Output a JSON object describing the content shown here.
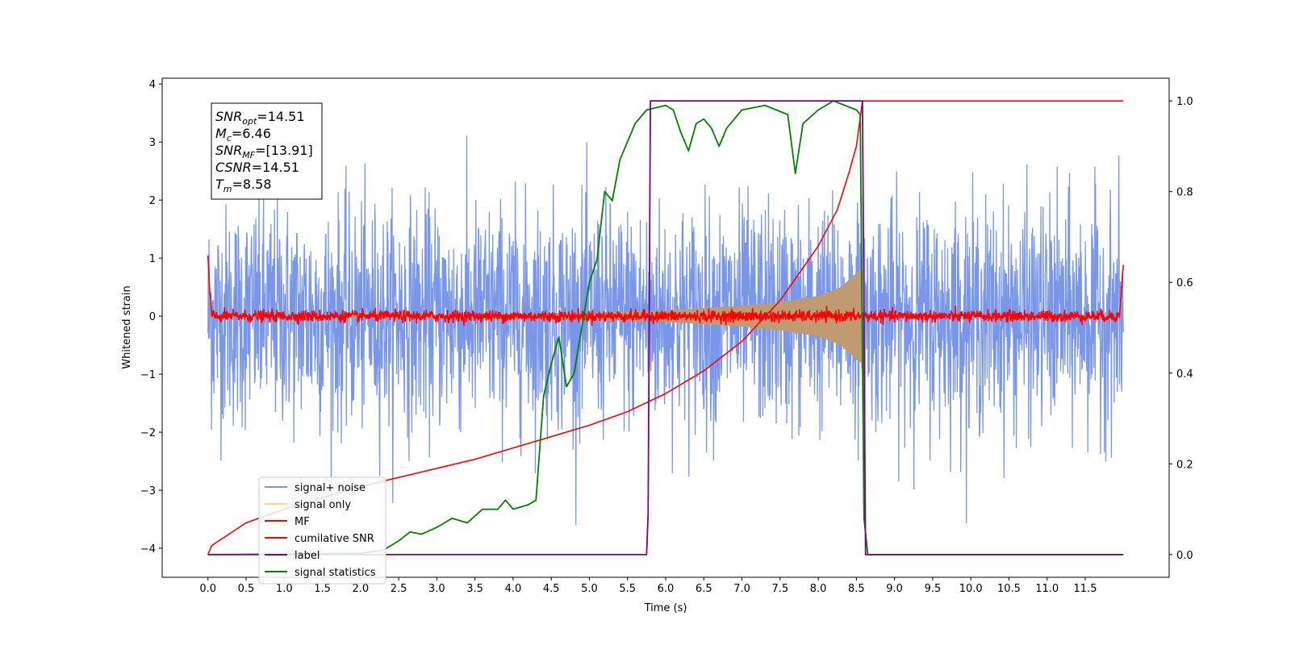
{
  "chart_data": {
    "type": "line",
    "xlabel": "Time (s)",
    "ylabel": "Whitened strain",
    "xlim": [
      -0.6,
      12.6
    ],
    "ylim": [
      -4.5,
      4.1
    ],
    "y2lim": [
      -0.05,
      1.05
    ],
    "x_ticks": [
      0.0,
      0.5,
      1.0,
      1.5,
      2.0,
      2.5,
      3.0,
      3.5,
      4.0,
      4.5,
      5.0,
      5.5,
      6.0,
      6.5,
      7.0,
      7.5,
      8.0,
      8.5,
      9.0,
      9.5,
      10.0,
      10.5,
      11.0,
      11.5
    ],
    "x_tick_labels": [
      "0.0",
      "0.5",
      "1.0",
      "1.5",
      "2.0",
      "2.5",
      "3.0",
      "3.5",
      "4.0",
      "4.5",
      "5.0",
      "5.5",
      "6.0",
      "6.5",
      "7.0",
      "7.5",
      "8.0",
      "8.5",
      "9.0",
      "9.5",
      "10.0",
      "10.5",
      "11.0",
      "11.5"
    ],
    "y_ticks": [
      4,
      3,
      2,
      1,
      0,
      -1,
      -2,
      -3,
      -4
    ],
    "y_tick_labels": [
      "4",
      "3",
      "2",
      "1",
      "0",
      "−1",
      "−2",
      "−3",
      "−4"
    ],
    "y2_ticks": [
      0.0,
      0.2,
      0.4,
      0.6,
      0.8,
      1.0
    ],
    "y2_tick_labels": [
      "0.0",
      "0.2",
      "0.4",
      "0.6",
      "0.8",
      "1.0"
    ],
    "legend": {
      "placement": "lower-left",
      "entries": [
        {
          "label": "signal+ noise",
          "color": "#7a96e8"
        },
        {
          "label": "signal only",
          "color": "#ffd27f"
        },
        {
          "label": "MF",
          "color": "#ff0000"
        },
        {
          "label": "cumilative SNR",
          "color": "#ff0000"
        },
        {
          "label": "label",
          "color": "#800080"
        },
        {
          "label": "signal statistics",
          "color": "#008000"
        }
      ]
    },
    "info_box": [
      {
        "sym": "SNR",
        "sub": "opt",
        "val": "=14.51"
      },
      {
        "sym": "M",
        "sub": "c",
        "val": "=6.46"
      },
      {
        "sym": "SNR",
        "sub": "MF",
        "val": "=[13.91]"
      },
      {
        "sym": "CSNR",
        "sub": "",
        "val": "=14.51"
      },
      {
        "sym": "T",
        "sub": "m",
        "val": "=8.58"
      }
    ],
    "series": [
      {
        "name": "signal+ noise",
        "axis": "left",
        "color": "#7a96e8",
        "style": "noise",
        "x_range": [
          0.0,
          12.0
        ],
        "amplitude": 0.95,
        "y_extremes": [
          3.7,
          -4.15
        ]
      },
      {
        "name": "signal only",
        "axis": "left",
        "color": "#c09a70",
        "style": "chirp_envelope",
        "x_range": [
          0.0,
          8.58
        ],
        "points": [
          [
            0.0,
            0.01
          ],
          [
            2.0,
            0.02
          ],
          [
            4.0,
            0.04
          ],
          [
            5.0,
            0.06
          ],
          [
            6.0,
            0.1
          ],
          [
            7.0,
            0.18
          ],
          [
            7.5,
            0.24
          ],
          [
            8.0,
            0.35
          ],
          [
            8.3,
            0.5
          ],
          [
            8.5,
            0.75
          ],
          [
            8.58,
            0.82
          ]
        ]
      },
      {
        "name": "MF",
        "axis": "left",
        "color": "#ff0000",
        "style": "noise",
        "x_range": [
          0.0,
          12.0
        ],
        "amplitude": 0.05,
        "edge_values": [
          [
            0.0,
            1.0
          ],
          [
            0.02,
            0.5
          ],
          [
            0.05,
            0.05
          ],
          [
            11.95,
            0.05
          ],
          [
            12.0,
            0.98
          ]
        ]
      },
      {
        "name": "cumilative SNR",
        "axis": "right",
        "color": "#ff0000",
        "points": [
          [
            0.0,
            0.0
          ],
          [
            0.05,
            0.02
          ],
          [
            0.5,
            0.07
          ],
          [
            1.0,
            0.1
          ],
          [
            1.5,
            0.125
          ],
          [
            2.0,
            0.15
          ],
          [
            2.5,
            0.17
          ],
          [
            3.0,
            0.19
          ],
          [
            3.5,
            0.21
          ],
          [
            4.0,
            0.235
          ],
          [
            4.5,
            0.26
          ],
          [
            5.0,
            0.285
          ],
          [
            5.5,
            0.315
          ],
          [
            6.0,
            0.355
          ],
          [
            6.5,
            0.405
          ],
          [
            7.0,
            0.47
          ],
          [
            7.5,
            0.56
          ],
          [
            8.0,
            0.68
          ],
          [
            8.25,
            0.76
          ],
          [
            8.4,
            0.84
          ],
          [
            8.5,
            0.9
          ],
          [
            8.58,
            1.0
          ],
          [
            12.0,
            1.0
          ]
        ]
      },
      {
        "name": "label",
        "axis": "right",
        "color": "#800080",
        "points": [
          [
            0.0,
            0.0
          ],
          [
            5.75,
            0.0
          ],
          [
            5.77,
            0.09
          ],
          [
            5.8,
            1.0
          ],
          [
            8.58,
            1.0
          ],
          [
            8.62,
            0.0
          ],
          [
            12.0,
            0.0
          ]
        ]
      },
      {
        "name": "signal statistics",
        "axis": "right",
        "color": "#008000",
        "points": [
          [
            0.0,
            0.0
          ],
          [
            1.0,
            0.001
          ],
          [
            2.0,
            0.003
          ],
          [
            2.3,
            0.01
          ],
          [
            2.5,
            0.03
          ],
          [
            2.65,
            0.05
          ],
          [
            2.8,
            0.045
          ],
          [
            3.0,
            0.06
          ],
          [
            3.2,
            0.08
          ],
          [
            3.4,
            0.07
          ],
          [
            3.6,
            0.1
          ],
          [
            3.8,
            0.1
          ],
          [
            3.9,
            0.12
          ],
          [
            4.0,
            0.1
          ],
          [
            4.2,
            0.11
          ],
          [
            4.3,
            0.12
          ],
          [
            4.4,
            0.35
          ],
          [
            4.5,
            0.42
          ],
          [
            4.6,
            0.48
          ],
          [
            4.7,
            0.37
          ],
          [
            4.8,
            0.4
          ],
          [
            4.9,
            0.5
          ],
          [
            5.0,
            0.6
          ],
          [
            5.1,
            0.65
          ],
          [
            5.2,
            0.8
          ],
          [
            5.3,
            0.78
          ],
          [
            5.4,
            0.87
          ],
          [
            5.5,
            0.91
          ],
          [
            5.6,
            0.95
          ],
          [
            5.75,
            0.98
          ],
          [
            6.0,
            0.99
          ],
          [
            6.1,
            0.98
          ],
          [
            6.2,
            0.93
          ],
          [
            6.3,
            0.89
          ],
          [
            6.4,
            0.95
          ],
          [
            6.5,
            0.96
          ],
          [
            6.6,
            0.94
          ],
          [
            6.7,
            0.9
          ],
          [
            6.8,
            0.94
          ],
          [
            7.0,
            0.98
          ],
          [
            7.3,
            0.99
          ],
          [
            7.6,
            0.97
          ],
          [
            7.7,
            0.84
          ],
          [
            7.8,
            0.95
          ],
          [
            8.0,
            0.98
          ],
          [
            8.2,
            1.0
          ],
          [
            8.5,
            0.98
          ],
          [
            8.55,
            0.97
          ],
          [
            8.6,
            0.08
          ],
          [
            8.65,
            0.0
          ],
          [
            12.0,
            0.0
          ]
        ]
      }
    ]
  }
}
